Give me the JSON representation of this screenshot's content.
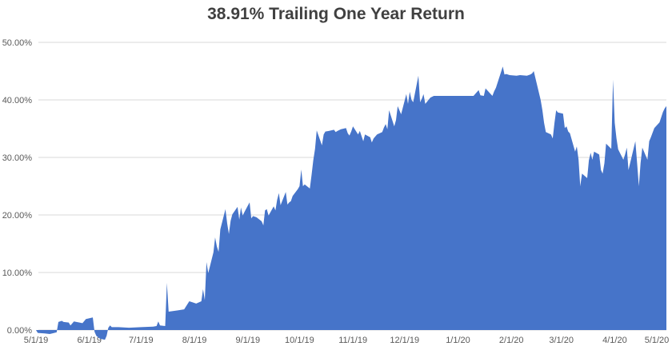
{
  "title": "38.91% Trailing One Year Return",
  "colors": {
    "area": "#4674C9",
    "gridline": "#D9D9D9",
    "axis_label": "#595959",
    "title": "#404040",
    "background": "#FFFFFF"
  },
  "chart_data": {
    "type": "area",
    "title": "38.91% Trailing One Year Return",
    "xlabel": "",
    "ylabel": "",
    "ylim": [
      0,
      50
    ],
    "grid": "horizontal",
    "legend": "none",
    "x_ticks": [
      {
        "label": "5/1/19",
        "date": "2019-05-01"
      },
      {
        "label": "6/1/19",
        "date": "2019-06-01"
      },
      {
        "label": "7/1/19",
        "date": "2019-07-01"
      },
      {
        "label": "8/1/19",
        "date": "2019-08-01"
      },
      {
        "label": "9/1/19",
        "date": "2019-09-01"
      },
      {
        "label": "10/1/19",
        "date": "2019-10-01"
      },
      {
        "label": "11/1/19",
        "date": "2019-11-01"
      },
      {
        "label": "12/1/19",
        "date": "2019-12-01"
      },
      {
        "label": "1/1/20",
        "date": "2020-01-01"
      },
      {
        "label": "2/1/20",
        "date": "2020-02-01"
      },
      {
        "label": "3/1/20",
        "date": "2020-03-01"
      },
      {
        "label": "4/1/20",
        "date": "2020-04-01"
      },
      {
        "label": "5/1/20",
        "date": "2020-05-01"
      }
    ],
    "y_ticks": [
      {
        "label": "0.00%",
        "value": 0
      },
      {
        "label": "10.00%",
        "value": 10
      },
      {
        "label": "20.00%",
        "value": 20
      },
      {
        "label": "30.00%",
        "value": 30
      },
      {
        "label": "40.00%",
        "value": 40
      },
      {
        "label": "50.00%",
        "value": 50
      }
    ],
    "series": [
      {
        "name": "Trailing One Year Return",
        "dates": [
          "2019-05-01",
          "2019-05-02",
          "2019-05-06",
          "2019-05-09",
          "2019-05-13",
          "2019-05-14",
          "2019-05-16",
          "2019-05-17",
          "2019-05-20",
          "2019-05-21",
          "2019-05-23",
          "2019-05-28",
          "2019-05-30",
          "2019-06-03",
          "2019-06-04",
          "2019-06-05",
          "2019-06-07",
          "2019-06-10",
          "2019-06-11",
          "2019-06-12",
          "2019-06-13",
          "2019-06-14",
          "2019-06-18",
          "2019-06-24",
          "2019-07-01",
          "2019-07-08",
          "2019-07-10",
          "2019-07-11",
          "2019-07-12",
          "2019-07-15",
          "2019-07-16",
          "2019-07-17",
          "2019-07-22",
          "2019-07-26",
          "2019-07-29",
          "2019-07-31",
          "2019-08-02",
          "2019-08-05",
          "2019-08-06",
          "2019-08-07",
          "2019-08-08",
          "2019-08-09",
          "2019-08-12",
          "2019-08-13",
          "2019-08-14",
          "2019-08-15",
          "2019-08-16",
          "2019-08-19",
          "2019-08-20",
          "2019-08-21",
          "2019-08-22",
          "2019-08-23",
          "2019-08-26",
          "2019-08-27",
          "2019-08-28",
          "2019-08-29",
          "2019-08-30",
          "2019-09-02",
          "2019-09-03",
          "2019-09-04",
          "2019-09-06",
          "2019-09-09",
          "2019-09-10",
          "2019-09-11",
          "2019-09-12",
          "2019-09-13",
          "2019-09-16",
          "2019-09-17",
          "2019-09-18",
          "2019-09-19",
          "2019-09-20",
          "2019-09-23",
          "2019-09-24",
          "2019-09-25",
          "2019-09-26",
          "2019-09-27",
          "2019-09-30",
          "2019-10-01",
          "2019-10-02",
          "2019-10-03",
          "2019-10-04",
          "2019-10-07",
          "2019-10-08",
          "2019-10-09",
          "2019-10-10",
          "2019-10-11",
          "2019-10-14",
          "2019-10-15",
          "2019-10-16",
          "2019-10-18",
          "2019-10-21",
          "2019-10-22",
          "2019-10-23",
          "2019-10-25",
          "2019-10-28",
          "2019-10-29",
          "2019-10-30",
          "2019-10-31",
          "2019-11-01",
          "2019-11-04",
          "2019-11-05",
          "2019-11-07",
          "2019-11-08",
          "2019-11-11",
          "2019-11-12",
          "2019-11-13",
          "2019-11-15",
          "2019-11-18",
          "2019-11-19",
          "2019-11-20",
          "2019-11-21",
          "2019-11-22",
          "2019-11-25",
          "2019-11-26",
          "2019-11-27",
          "2019-11-29",
          "2019-12-02",
          "2019-12-03",
          "2019-12-04",
          "2019-12-05",
          "2019-12-06",
          "2019-12-09",
          "2019-12-10",
          "2019-12-11",
          "2019-12-12",
          "2019-12-13",
          "2019-12-16",
          "2019-12-18",
          "2019-12-23",
          "2019-12-30",
          "2020-01-06",
          "2020-01-10",
          "2020-01-13",
          "2020-01-14",
          "2020-01-16",
          "2020-01-17",
          "2020-01-21",
          "2020-01-22",
          "2020-01-23",
          "2020-01-24",
          "2020-01-27",
          "2020-01-28",
          "2020-01-29",
          "2020-01-31",
          "2020-02-04",
          "2020-02-06",
          "2020-02-10",
          "2020-02-12",
          "2020-02-13",
          "2020-02-14",
          "2020-02-18",
          "2020-02-19",
          "2020-02-20",
          "2020-02-21",
          "2020-02-24",
          "2020-02-25",
          "2020-02-26",
          "2020-02-27",
          "2020-02-28",
          "2020-03-02",
          "2020-03-03",
          "2020-03-04",
          "2020-03-05",
          "2020-03-06",
          "2020-03-09",
          "2020-03-10",
          "2020-03-11",
          "2020-03-12",
          "2020-03-13",
          "2020-03-16",
          "2020-03-17",
          "2020-03-18",
          "2020-03-19",
          "2020-03-20",
          "2020-03-23",
          "2020-03-24",
          "2020-03-25",
          "2020-03-26",
          "2020-03-27",
          "2020-03-30",
          "2020-03-31",
          "2020-04-01",
          "2020-04-02",
          "2020-04-03",
          "2020-04-06",
          "2020-04-07",
          "2020-04-08",
          "2020-04-09",
          "2020-04-13",
          "2020-04-14",
          "2020-04-15",
          "2020-04-16",
          "2020-04-17",
          "2020-04-20",
          "2020-04-21",
          "2020-04-22",
          "2020-04-24",
          "2020-04-27",
          "2020-04-29",
          "2020-04-30",
          "2020-05-01"
        ],
        "values": [
          0.0,
          -0.5,
          -0.6,
          -0.7,
          -0.4,
          1.4,
          1.6,
          1.4,
          1.3,
          0.8,
          1.5,
          1.2,
          1.9,
          2.2,
          -0.3,
          -1.0,
          -1.5,
          -1.7,
          -1.0,
          0.4,
          0.8,
          0.5,
          0.5,
          0.4,
          0.5,
          0.6,
          0.7,
          1.5,
          0.8,
          0.7,
          8.2,
          3.2,
          3.4,
          3.6,
          5.0,
          4.8,
          4.6,
          5.0,
          7.1,
          5.2,
          11.8,
          9.9,
          13.5,
          16.1,
          14.5,
          13.6,
          17.5,
          21.0,
          18.5,
          16.7,
          19.0,
          20.1,
          21.4,
          19.2,
          21.3,
          19.9,
          20.5,
          22.2,
          19.4,
          19.8,
          19.6,
          18.9,
          18.2,
          20.8,
          21.0,
          19.9,
          21.5,
          20.8,
          22.6,
          23.8,
          21.7,
          24.0,
          21.8,
          22.2,
          22.4,
          23.3,
          24.5,
          25.0,
          27.9,
          25.0,
          25.3,
          24.6,
          27.0,
          29.5,
          31.5,
          34.7,
          32.1,
          34.0,
          34.5,
          34.6,
          34.8,
          34.4,
          34.6,
          34.9,
          35.1,
          34.2,
          33.8,
          34.5,
          35.4,
          34.0,
          34.6,
          32.8,
          34.0,
          33.5,
          32.6,
          33.3,
          34.0,
          34.4,
          35.2,
          35.8,
          34.9,
          38.2,
          35.4,
          36.5,
          38.9,
          37.5,
          41.0,
          39.3,
          41.4,
          40.0,
          39.6,
          44.2,
          39.6,
          40.2,
          41.0,
          39.3,
          40.4,
          40.7,
          40.7,
          40.7,
          40.7,
          40.7,
          41.7,
          40.8,
          40.7,
          42.0,
          40.7,
          41.5,
          42.1,
          43.0,
          45.8,
          44.4,
          44.5,
          44.3,
          44.2,
          44.3,
          44.2,
          44.4,
          44.6,
          45.0,
          40.0,
          38.2,
          36.0,
          34.4,
          34.0,
          33.3,
          36.0,
          38.2,
          37.8,
          37.6,
          35.1,
          35.4,
          34.5,
          34.2,
          31.0,
          31.9,
          29.6,
          25.0,
          27.2,
          26.4,
          29.5,
          30.8,
          29.6,
          31.0,
          30.5,
          27.8,
          27.2,
          29.0,
          32.4,
          31.5,
          43.5,
          36.0,
          33.3,
          31.4,
          29.6,
          30.5,
          31.7,
          27.8,
          32.8,
          29.0,
          25.0,
          29.0,
          31.7,
          29.6,
          32.8,
          33.5,
          35.1,
          36.1,
          37.9,
          38.5,
          38.91
        ]
      }
    ]
  }
}
